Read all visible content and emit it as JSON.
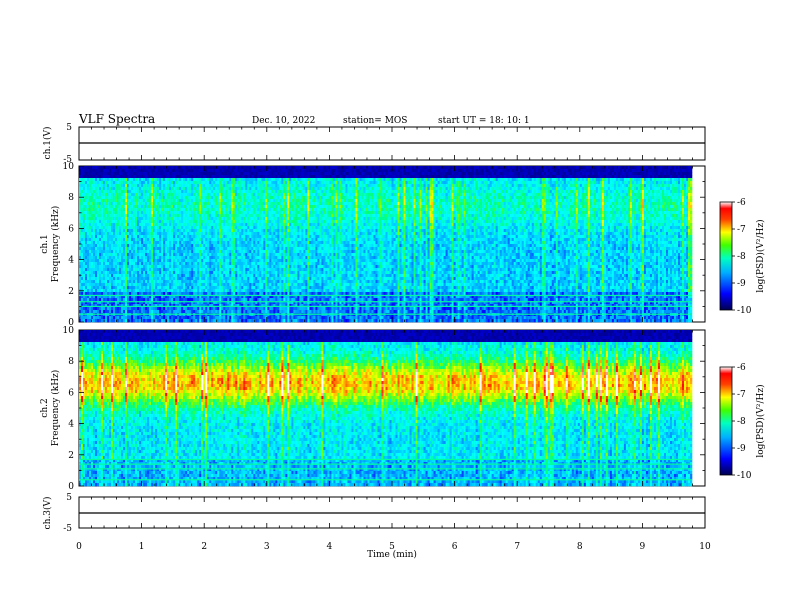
{
  "header": {
    "title": "VLF Spectra",
    "date": "Dec. 10, 2022",
    "station": "station= MOS",
    "start": "start  UT =   18: 10: 1"
  },
  "chart_data": [
    {
      "type": "line",
      "name": "ch1-waveform",
      "ylabel": "ch.1(V)",
      "ylim": [
        -5,
        5
      ],
      "yticks": [
        "5",
        "-5"
      ],
      "xlim": [
        0,
        10
      ],
      "values": [
        0,
        0
      ]
    },
    {
      "type": "heatmap",
      "name": "ch1-spectrogram",
      "ylabel": "ch.1\nFrequency (kHz)",
      "ylabel_top": "ch.1",
      "ylabel_bottom": "Frequency (kHz)",
      "ylim": [
        0,
        10
      ],
      "yticks": [
        "0",
        "2",
        "4",
        "6",
        "8",
        "10"
      ],
      "xlim": [
        0,
        10
      ],
      "colorbar": {
        "label": "log(PSD)(V²/Hz)",
        "range": [
          -10,
          -6
        ],
        "ticks": [
          "-6",
          "-7",
          "-8",
          "-9",
          "-10"
        ]
      }
    },
    {
      "type": "heatmap",
      "name": "ch2-spectrogram",
      "ylabel": "ch.2\nFrequency (kHz)",
      "ylabel_top": "ch.2",
      "ylabel_bottom": "Frequency (kHz)",
      "ylim": [
        0,
        10
      ],
      "yticks": [
        "0",
        "2",
        "4",
        "6",
        "8",
        "10"
      ],
      "xlim": [
        0,
        10
      ],
      "colorbar": {
        "label": "log(PSD)(V²/Hz)",
        "range": [
          -10,
          -6
        ],
        "ticks": [
          "-6",
          "-7",
          "-8",
          "-9",
          "-10"
        ]
      }
    },
    {
      "type": "line",
      "name": "ch3-waveform",
      "ylabel": "ch.3(V)",
      "ylim": [
        -5,
        5
      ],
      "yticks": [
        "5",
        "-5"
      ],
      "xlim": [
        0,
        10
      ],
      "values": [
        0,
        0
      ]
    }
  ],
  "xaxis": {
    "label": "Time  (min)",
    "ticks": [
      "0",
      "1",
      "2",
      "3",
      "4",
      "5",
      "6",
      "7",
      "8",
      "9",
      "10"
    ]
  },
  "colors": {
    "colormap": [
      "#000080",
      "#0000ff",
      "#00a0ff",
      "#00ffff",
      "#00ff80",
      "#80ff00",
      "#ffff00",
      "#ff8000",
      "#ff0000",
      "#ffffff"
    ]
  }
}
